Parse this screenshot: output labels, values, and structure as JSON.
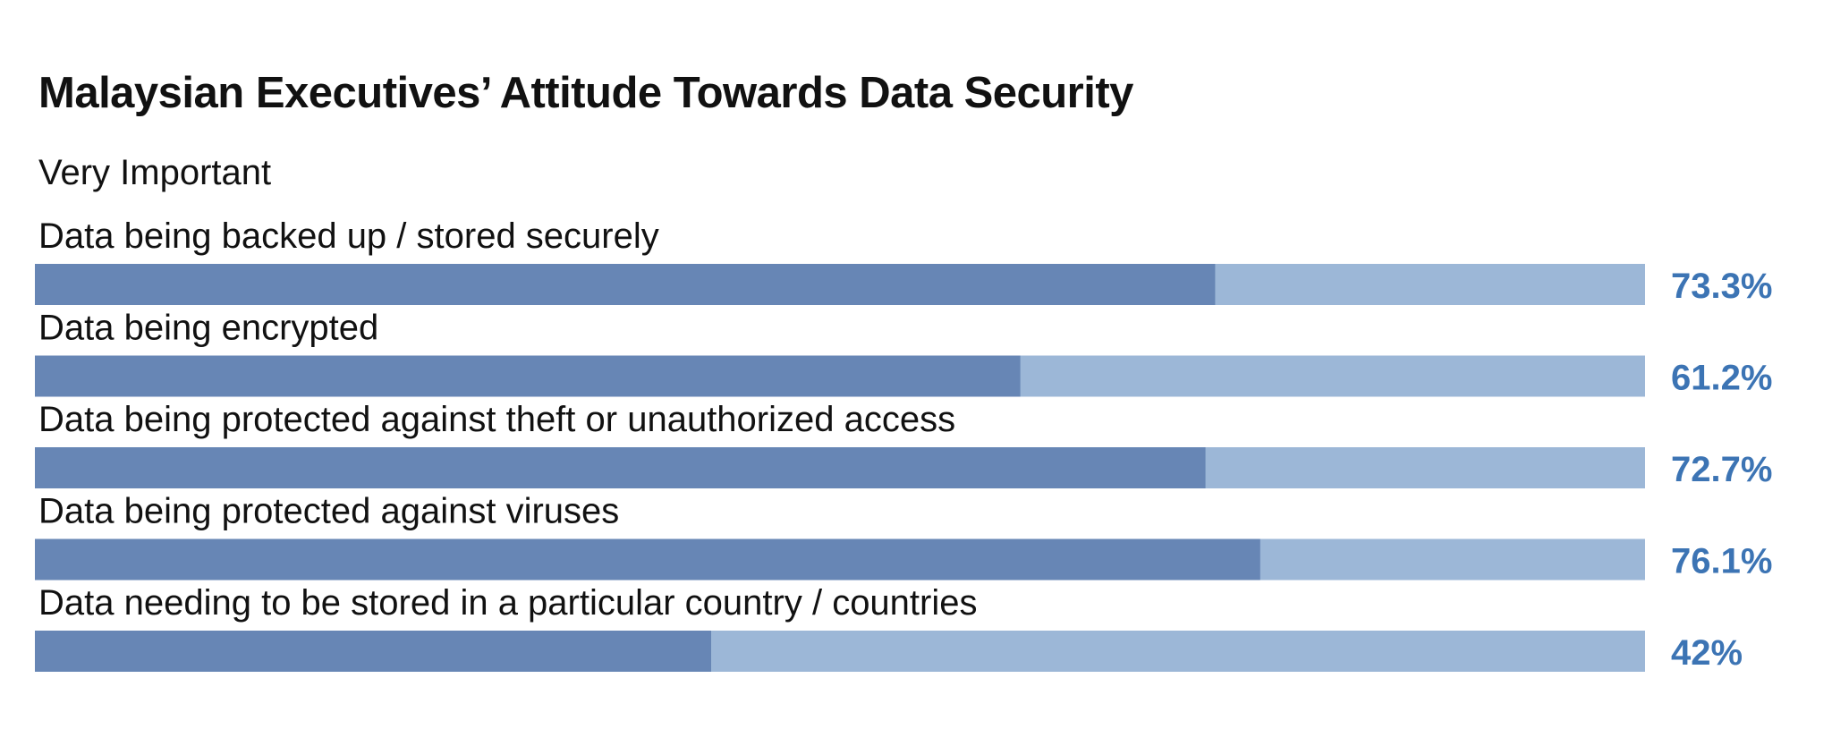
{
  "title": "Malaysian Executives’ Attitude Towards Data Security",
  "subtitle": "Very Important",
  "colors": {
    "bar_fill": "#6786b5",
    "bar_track": "#9cb7d7",
    "value_text": "#3c74b4",
    "text": "#111111"
  },
  "chart_data": {
    "type": "bar",
    "orientation": "horizontal",
    "title": "Malaysian Executives’ Attitude Towards Data Security",
    "subtitle": "Very Important",
    "categories": [
      "Data being backed up / stored securely",
      "Data being encrypted",
      "Data being protected against theft or unauthorized access",
      "Data being protected against viruses",
      "Data needing to be stored in a particular country / countries"
    ],
    "values": [
      73.3,
      61.2,
      72.7,
      76.1,
      42
    ],
    "value_labels": [
      "73.3%",
      "61.2%",
      "72.7%",
      "76.1%",
      "42%"
    ],
    "xlim": [
      0,
      100
    ],
    "unit": "%",
    "grid": false,
    "legend": "none"
  }
}
